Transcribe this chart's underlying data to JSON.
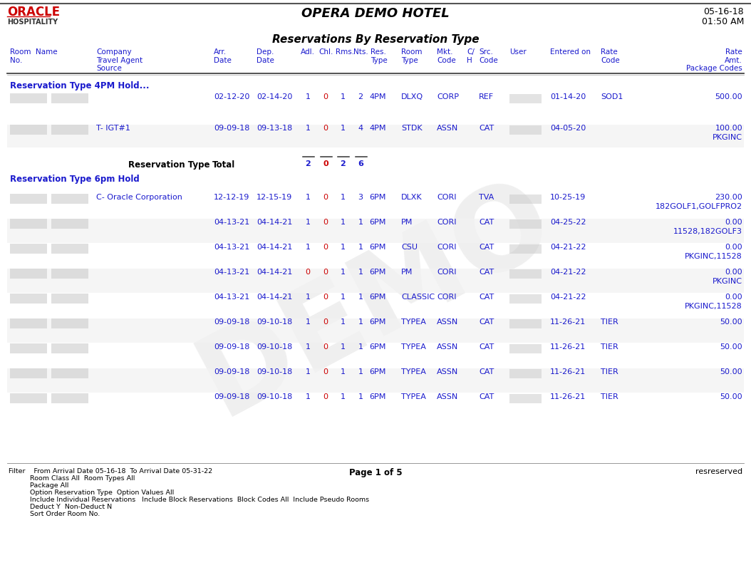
{
  "title_hotel": "OPERA DEMO HOTEL",
  "title_report": "Reservations By Reservation Type",
  "date": "05-16-18",
  "time": "01:50 AM",
  "oracle_text": "ORACLE",
  "hospitality_text": "HOSPITALITY",
  "section1_title": "Reservation Type 4PM Hold...",
  "section2_title": "Reservation Type 6pm Hold",
  "rows_4pm": [
    {
      "arr": "02-12-20",
      "dep": "02-14-20",
      "adl": "1",
      "chl": "0",
      "rms": "1",
      "nts": "2",
      "res": "4PM",
      "room": "DLXQ",
      "mkt": "CORP",
      "ch": "",
      "src": "REF",
      "user": "",
      "entered": "01-14-20",
      "rate_code": "SOD1",
      "rate_amt": "500.00",
      "pkg": "",
      "travel_agent": ""
    },
    {
      "arr": "09-09-18",
      "dep": "09-13-18",
      "adl": "1",
      "chl": "0",
      "rms": "1",
      "nts": "4",
      "res": "4PM",
      "room": "STDK",
      "mkt": "ASSN",
      "ch": "",
      "src": "CAT",
      "user": "",
      "entered": "04-05-20",
      "rate_code": "",
      "rate_amt": "100.00",
      "pkg": "PKGINC",
      "travel_agent": "T- IGT#1"
    }
  ],
  "total_4pm": {
    "adl": "2",
    "chl": "0",
    "rms": "2",
    "nts": "6"
  },
  "rows_6pm": [
    {
      "travel_agent": "C- Oracle Corporation",
      "arr": "12-12-19",
      "dep": "12-15-19",
      "adl": "1",
      "chl": "0",
      "rms": "1",
      "nts": "3",
      "res": "6PM",
      "room": "DLXK",
      "mkt": "CORI",
      "ch": "",
      "src": "TVA",
      "user": "",
      "entered": "10-25-19",
      "rate_code": "",
      "rate_amt": "230.00",
      "pkg": "182GOLF1,GOLFPRO2"
    },
    {
      "travel_agent": "",
      "arr": "04-13-21",
      "dep": "04-14-21",
      "adl": "1",
      "chl": "0",
      "rms": "1",
      "nts": "1",
      "res": "6PM",
      "room": "PM",
      "mkt": "CORI",
      "ch": "",
      "src": "CAT",
      "user": "",
      "entered": "04-25-22",
      "rate_code": "",
      "rate_amt": "0.00",
      "pkg": "11528,182GOLF3"
    },
    {
      "travel_agent": "",
      "arr": "04-13-21",
      "dep": "04-14-21",
      "adl": "1",
      "chl": "0",
      "rms": "1",
      "nts": "1",
      "res": "6PM",
      "room": "CSU",
      "mkt": "CORI",
      "ch": "",
      "src": "CAT",
      "user": "",
      "entered": "04-21-22",
      "rate_code": "",
      "rate_amt": "0.00",
      "pkg": "PKGINC,11528"
    },
    {
      "travel_agent": "",
      "arr": "04-13-21",
      "dep": "04-14-21",
      "adl": "0",
      "chl": "0",
      "rms": "1",
      "nts": "1",
      "res": "6PM",
      "room": "PM",
      "mkt": "CORI",
      "ch": "",
      "src": "CAT",
      "user": "",
      "entered": "04-21-22",
      "rate_code": "",
      "rate_amt": "0.00",
      "pkg": "PKGINC"
    },
    {
      "travel_agent": "",
      "arr": "04-13-21",
      "dep": "04-14-21",
      "adl": "1",
      "chl": "0",
      "rms": "1",
      "nts": "1",
      "res": "6PM",
      "room": "CLASSIC",
      "mkt": "CORI",
      "ch": "",
      "src": "CAT",
      "user": "",
      "entered": "04-21-22",
      "rate_code": "",
      "rate_amt": "0.00",
      "pkg": "PKGINC,11528"
    },
    {
      "travel_agent": "",
      "arr": "09-09-18",
      "dep": "09-10-18",
      "adl": "1",
      "chl": "0",
      "rms": "1",
      "nts": "1",
      "res": "6PM",
      "room": "TYPEA",
      "mkt": "ASSN",
      "ch": "",
      "src": "CAT",
      "user": "",
      "entered": "11-26-21",
      "rate_code": "TIER",
      "rate_amt": "50.00",
      "pkg": ""
    },
    {
      "travel_agent": "",
      "arr": "09-09-18",
      "dep": "09-10-18",
      "adl": "1",
      "chl": "0",
      "rms": "1",
      "nts": "1",
      "res": "6PM",
      "room": "TYPEA",
      "mkt": "ASSN",
      "ch": "",
      "src": "CAT",
      "user": "",
      "entered": "11-26-21",
      "rate_code": "TIER",
      "rate_amt": "50.00",
      "pkg": ""
    },
    {
      "travel_agent": "",
      "arr": "09-09-18",
      "dep": "09-10-18",
      "adl": "1",
      "chl": "0",
      "rms": "1",
      "nts": "1",
      "res": "6PM",
      "room": "TYPEA",
      "mkt": "ASSN",
      "ch": "",
      "src": "CAT",
      "user": "",
      "entered": "11-26-21",
      "rate_code": "TIER",
      "rate_amt": "50.00",
      "pkg": ""
    },
    {
      "travel_agent": "",
      "arr": "09-09-18",
      "dep": "09-10-18",
      "adl": "1",
      "chl": "0",
      "rms": "1",
      "nts": "1",
      "res": "6PM",
      "room": "TYPEA",
      "mkt": "ASSN",
      "ch": "",
      "src": "CAT",
      "user": "",
      "entered": "11-26-21",
      "rate_code": "TIER",
      "rate_amt": "50.00",
      "pkg": ""
    }
  ],
  "filter_lines": [
    "Filter    From Arrival Date 05-16-18  To Arrival Date 05-31-22",
    "          Room Class All  Room Types All",
    "          Package All",
    "          Option Reservation Type  Option Values All",
    "          Include Individual Reservations   Include Block Reservations  Block Codes All  Include Pseudo Rooms",
    "          Deduct Y  Non-Deduct N",
    "          Sort Order Room No."
  ],
  "page_text": "Page 1 of 5",
  "resreserved_text": "resreserved",
  "bg_color": "#ffffff",
  "text_color": "#000000",
  "blue_color": "#1a1acd",
  "red_color": "#cc0000",
  "col_x": {
    "room_no": 14,
    "name": 50,
    "company": 135,
    "arr": 300,
    "dep": 360,
    "adl": 422,
    "chl": 447,
    "rms": 471,
    "nts": 496,
    "res": 520,
    "room_type": 563,
    "mkt": 613,
    "ch": 655,
    "src": 672,
    "user": 715,
    "entered": 772,
    "rate_code": 843,
    "rate_amt": 1042
  }
}
